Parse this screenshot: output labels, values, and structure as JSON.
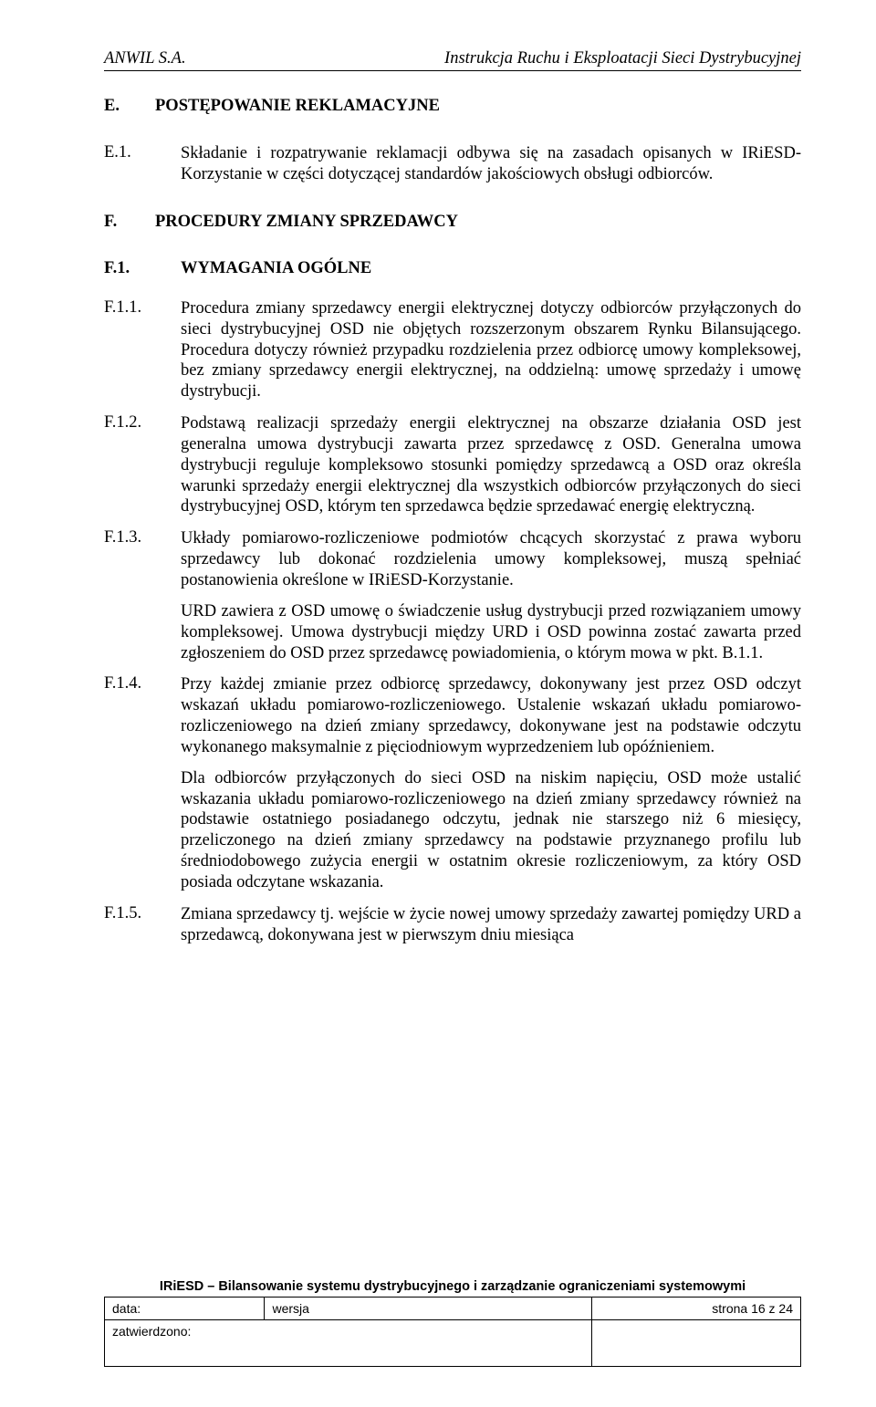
{
  "header": {
    "left": "ANWIL S.A.",
    "right": "Instrukcja Ruchu i Eksploatacji Sieci Dystrybucyjnej"
  },
  "sectionE": {
    "num": "E.",
    "title": "POSTĘPOWANIE REKLAMACYJNE",
    "e1": {
      "num": "E.1.",
      "text": "Składanie i rozpatrywanie reklamacji odbywa się na zasadach opisanych w IRiESD-Korzystanie w części dotyczącej standardów jakościowych obsługi odbiorców."
    }
  },
  "sectionF": {
    "num": "F.",
    "title": "PROCEDURY ZMIANY SPRZEDAWCY",
    "sub1": {
      "num": "F.1.",
      "title": "WYMAGANIA OGÓLNE"
    },
    "f11": {
      "num": "F.1.1.",
      "p1": "Procedura zmiany sprzedawcy energii elektrycznej dotyczy odbiorców przyłączonych do sieci dystrybucyjnej OSD nie objętych rozszerzonym obszarem Rynku Bilansującego. Procedura dotyczy również przypadku rozdzielenia przez odbiorcę umowy kompleksowej, bez zmiany sprzedawcy energii elektrycznej, na oddzielną: umowę sprzedaży i umowę dystrybucji."
    },
    "f12": {
      "num": "F.1.2.",
      "p1": "Podstawą realizacji sprzedaży energii elektrycznej na obszarze działania OSD jest generalna umowa dystrybucji zawarta przez sprzedawcę z OSD. Generalna umowa dystrybucji reguluje kompleksowo stosunki pomiędzy sprzedawcą a OSD oraz określa warunki sprzedaży energii elektrycznej dla wszystkich odbiorców przyłączonych do sieci dystrybucyjnej OSD, którym ten sprzedawca będzie sprzedawać energię elektryczną."
    },
    "f13": {
      "num": "F.1.3.",
      "p1": "Układy pomiarowo-rozliczeniowe podmiotów chcących skorzystać z prawa wyboru sprzedawcy lub dokonać rozdzielenia umowy kompleksowej, muszą spełniać postanowienia określone w IRiESD-Korzystanie.",
      "p2": "URD zawiera z OSD umowę o świadczenie usług dystrybucji przed rozwiązaniem umowy kompleksowej. Umowa dystrybucji między URD i OSD powinna zostać zawarta przed zgłoszeniem do OSD przez sprzedawcę powiadomienia, o którym mowa w pkt. B.1.1."
    },
    "f14": {
      "num": "F.1.4.",
      "p1": "Przy każdej zmianie przez odbiorcę sprzedawcy, dokonywany jest przez OSD odczyt wskazań układu pomiarowo-rozliczeniowego. Ustalenie wskazań układu pomiarowo-rozliczeniowego na dzień zmiany sprzedawcy, dokonywane jest na podstawie odczytu wykonanego maksymalnie z pięciodniowym wyprzedzeniem lub opóźnieniem.",
      "p2": "Dla odbiorców przyłączonych do sieci OSD na niskim napięciu, OSD może ustalić wskazania układu pomiarowo-rozliczeniowego na dzień zmiany sprzedawcy również na podstawie ostatniego posiadanego odczytu, jednak nie starszego niż 6 miesięcy, przeliczonego na dzień zmiany sprzedawcy na podstawie przyznanego profilu lub średniodobowego zużycia energii w ostatnim okresie rozliczeniowym, za który OSD posiada odczytane wskazania."
    },
    "f15": {
      "num": "F.1.5.",
      "p1": "Zmiana sprzedawcy tj. wejście w życie nowej umowy sprzedaży zawartej pomiędzy URD a sprzedawcą, dokonywana jest w pierwszym dniu miesiąca"
    }
  },
  "footer": {
    "title": "IRiESD – Bilansowanie systemu dystrybucyjnego i zarządzanie ograniczeniami systemowymi",
    "data_label": "data:",
    "wersja_label": "wersja",
    "page_label": "strona 16 z 24",
    "zatw_label": "zatwierdzono:"
  }
}
